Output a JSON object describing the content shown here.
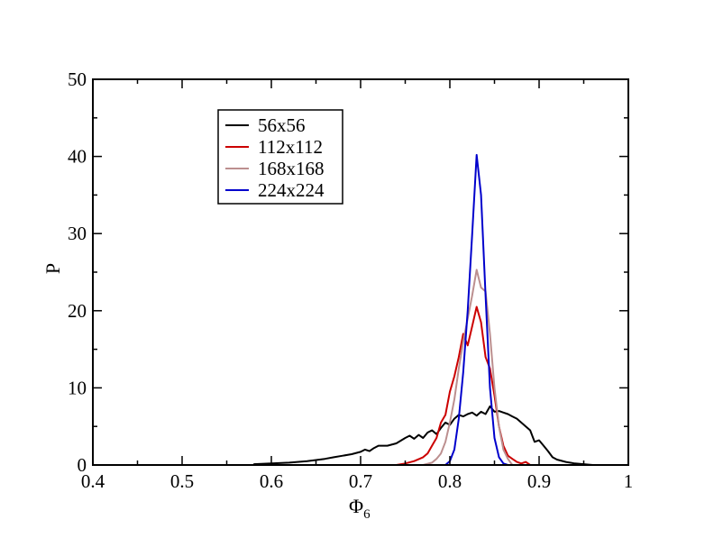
{
  "chart_data": {
    "type": "line",
    "xlabel": "Φ",
    "xlabel_subscript": "6",
    "ylabel": "P",
    "xlim": [
      0.4,
      1.0
    ],
    "ylim": [
      0,
      50
    ],
    "xticks": [
      0.4,
      0.5,
      0.6,
      0.7,
      0.8,
      0.9,
      1.0
    ],
    "xtick_labels": [
      "0.4",
      "0.5",
      "0.6",
      "0.7",
      "0.8",
      "0.9",
      "1"
    ],
    "yticks": [
      0,
      10,
      20,
      30,
      40,
      50
    ],
    "ytick_labels": [
      "0",
      "10",
      "20",
      "30",
      "40",
      "50"
    ],
    "legend_position": "top-left",
    "grid": false,
    "series": [
      {
        "name": "56x56",
        "color": "#000000",
        "x": [
          0.58,
          0.6,
          0.62,
          0.64,
          0.66,
          0.67,
          0.68,
          0.69,
          0.7,
          0.705,
          0.71,
          0.715,
          0.72,
          0.73,
          0.74,
          0.75,
          0.755,
          0.76,
          0.765,
          0.77,
          0.775,
          0.78,
          0.785,
          0.79,
          0.795,
          0.8,
          0.805,
          0.81,
          0.815,
          0.82,
          0.825,
          0.83,
          0.835,
          0.84,
          0.845,
          0.85,
          0.855,
          0.86,
          0.865,
          0.87,
          0.875,
          0.88,
          0.885,
          0.89,
          0.895,
          0.9,
          0.905,
          0.91,
          0.915,
          0.92,
          0.93,
          0.94,
          0.95,
          0.96
        ],
        "y": [
          0.1,
          0.2,
          0.3,
          0.5,
          0.8,
          1.0,
          1.2,
          1.4,
          1.7,
          2.0,
          1.8,
          2.2,
          2.5,
          2.5,
          2.8,
          3.5,
          3.8,
          3.4,
          3.9,
          3.5,
          4.2,
          4.5,
          4.0,
          4.8,
          5.5,
          5.2,
          6.0,
          6.5,
          6.3,
          6.6,
          6.8,
          6.4,
          6.9,
          6.6,
          7.6,
          6.9,
          7.0,
          6.8,
          6.6,
          6.3,
          6.0,
          5.5,
          5.0,
          4.5,
          3.0,
          3.2,
          2.5,
          1.8,
          1.0,
          0.7,
          0.4,
          0.2,
          0.1,
          0.0
        ]
      },
      {
        "name": "112x112",
        "color": "#cc0000",
        "x": [
          0.74,
          0.75,
          0.76,
          0.77,
          0.775,
          0.78,
          0.785,
          0.79,
          0.795,
          0.8,
          0.805,
          0.81,
          0.815,
          0.82,
          0.825,
          0.83,
          0.835,
          0.84,
          0.845,
          0.85,
          0.855,
          0.86,
          0.865,
          0.87,
          0.875,
          0.88,
          0.885,
          0.89
        ],
        "y": [
          0.0,
          0.2,
          0.5,
          1.0,
          1.5,
          2.5,
          3.5,
          5.5,
          6.5,
          9.5,
          11.5,
          14.0,
          17.0,
          15.5,
          18.0,
          20.5,
          18.5,
          14.0,
          12.5,
          9.0,
          5.0,
          2.5,
          1.2,
          0.8,
          0.4,
          0.2,
          0.4,
          0.0
        ]
      },
      {
        "name": "168x168",
        "color": "#bc8f8f",
        "x": [
          0.77,
          0.78,
          0.785,
          0.79,
          0.795,
          0.8,
          0.805,
          0.81,
          0.815,
          0.82,
          0.825,
          0.83,
          0.835,
          0.84,
          0.845,
          0.85,
          0.855,
          0.86,
          0.865,
          0.87
        ],
        "y": [
          0.0,
          0.3,
          0.8,
          1.5,
          3.0,
          5.5,
          8.5,
          12.5,
          16.0,
          19.0,
          22.0,
          25.3,
          23.0,
          22.5,
          17.0,
          10.0,
          5.0,
          2.0,
          0.8,
          0.0
        ]
      },
      {
        "name": "224x224",
        "color": "#0000cc",
        "x": [
          0.795,
          0.8,
          0.805,
          0.81,
          0.815,
          0.82,
          0.825,
          0.83,
          0.835,
          0.84,
          0.845,
          0.85,
          0.855,
          0.86,
          0.865
        ],
        "y": [
          0.0,
          0.5,
          2.0,
          6.0,
          12.0,
          20.0,
          30.0,
          40.2,
          35.0,
          22.0,
          10.0,
          3.5,
          1.0,
          0.2,
          0.0
        ]
      }
    ]
  }
}
